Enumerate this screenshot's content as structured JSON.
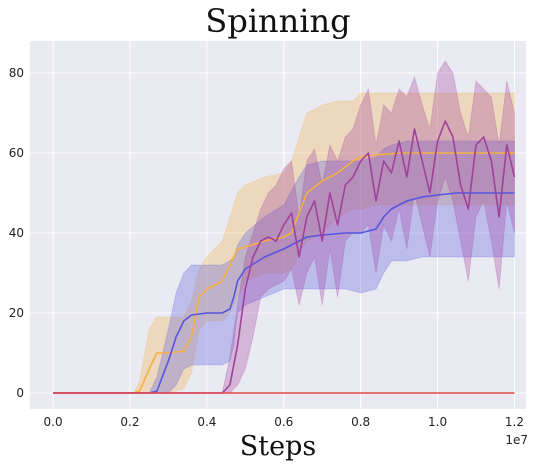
{
  "chart_data": {
    "type": "area",
    "title": "Spinning",
    "xlabel": "Steps",
    "ylabel": "",
    "x_scale_label": "1e7",
    "xlim": [
      -0.06,
      1.23
    ],
    "ylim": [
      -4,
      88
    ],
    "x_ticks": [
      0.0,
      0.2,
      0.4,
      0.6,
      0.8,
      1.0,
      1.2
    ],
    "x_tick_labels": [
      "0.0",
      "0.2",
      "0.4",
      "0.6",
      "0.8",
      "1.0",
      "1.2"
    ],
    "y_ticks": [
      0,
      20,
      40,
      60,
      80
    ],
    "y_tick_labels": [
      "0",
      "20",
      "40",
      "60",
      "80"
    ],
    "grid": true,
    "colors": {
      "background": "#eaeaf2",
      "grid": "#ffffff"
    },
    "series": [
      {
        "color": "#f5b042",
        "points": [
          [
            0.0,
            0,
            0,
            0
          ],
          [
            0.21,
            0,
            0,
            0
          ],
          [
            0.225,
            0.5,
            0,
            3
          ],
          [
            0.25,
            6,
            0,
            16
          ],
          [
            0.27,
            10,
            0,
            19
          ],
          [
            0.3,
            10,
            0,
            19
          ],
          [
            0.34,
            10.5,
            1,
            19
          ],
          [
            0.36,
            14,
            5,
            23
          ],
          [
            0.38,
            24,
            16,
            31
          ],
          [
            0.4,
            26,
            18,
            34
          ],
          [
            0.44,
            28,
            18,
            38
          ],
          [
            0.46,
            32,
            20,
            44
          ],
          [
            0.48,
            36,
            24,
            50
          ],
          [
            0.5,
            36.5,
            28,
            52
          ],
          [
            0.55,
            38,
            30,
            54
          ],
          [
            0.6,
            39,
            30,
            55
          ],
          [
            0.62,
            40,
            31,
            58
          ],
          [
            0.64,
            45,
            35,
            64
          ],
          [
            0.66,
            50,
            38,
            70
          ],
          [
            0.7,
            53,
            40,
            72
          ],
          [
            0.74,
            55,
            44,
            73
          ],
          [
            0.78,
            58,
            46,
            73
          ],
          [
            0.8,
            59,
            46,
            75
          ],
          [
            0.84,
            59.5,
            47,
            75
          ],
          [
            0.9,
            60,
            47,
            75
          ],
          [
            0.95,
            60,
            47,
            75
          ],
          [
            1.0,
            60,
            47,
            75
          ],
          [
            1.05,
            60,
            47,
            75
          ],
          [
            1.1,
            60,
            47,
            75
          ],
          [
            1.15,
            60,
            47,
            75
          ],
          [
            1.2,
            60,
            47,
            75
          ]
        ]
      },
      {
        "color": "#5555dd",
        "points": [
          [
            0.0,
            0,
            0,
            0
          ],
          [
            0.25,
            0,
            0,
            0
          ],
          [
            0.27,
            0.5,
            0,
            4
          ],
          [
            0.3,
            8,
            0,
            16
          ],
          [
            0.32,
            14,
            2,
            25
          ],
          [
            0.34,
            18,
            6,
            30
          ],
          [
            0.36,
            19.5,
            7,
            32
          ],
          [
            0.4,
            20,
            7,
            32
          ],
          [
            0.44,
            20,
            7,
            32
          ],
          [
            0.46,
            21,
            8,
            33
          ],
          [
            0.47,
            24,
            12,
            34
          ],
          [
            0.48,
            28,
            20,
            37
          ],
          [
            0.5,
            31,
            22,
            40
          ],
          [
            0.55,
            34,
            24,
            44
          ],
          [
            0.6,
            36,
            26,
            47
          ],
          [
            0.64,
            38,
            26,
            54
          ],
          [
            0.66,
            39,
            26,
            57
          ],
          [
            0.7,
            39.5,
            26,
            58
          ],
          [
            0.76,
            40,
            26,
            58
          ],
          [
            0.8,
            40,
            25,
            58
          ],
          [
            0.84,
            41,
            26,
            59
          ],
          [
            0.86,
            44,
            30,
            61
          ],
          [
            0.88,
            46,
            33,
            62
          ],
          [
            0.92,
            48,
            33,
            63
          ],
          [
            0.96,
            49,
            34,
            63
          ],
          [
            1.0,
            49.5,
            34,
            63
          ],
          [
            1.05,
            50,
            34,
            63
          ],
          [
            1.1,
            50,
            34,
            63
          ],
          [
            1.15,
            50,
            34,
            63
          ],
          [
            1.2,
            50,
            34,
            63
          ]
        ]
      },
      {
        "color": "#a0409a",
        "points": [
          [
            0.0,
            0,
            0,
            0
          ],
          [
            0.44,
            0,
            0,
            0
          ],
          [
            0.46,
            2,
            0,
            9
          ],
          [
            0.48,
            12,
            2,
            22
          ],
          [
            0.5,
            26,
            6,
            34
          ],
          [
            0.52,
            34,
            14,
            40
          ],
          [
            0.54,
            38,
            24,
            46
          ],
          [
            0.56,
            39,
            26,
            50
          ],
          [
            0.58,
            38,
            27,
            52
          ],
          [
            0.6,
            42,
            28,
            56
          ],
          [
            0.62,
            45,
            31,
            58
          ],
          [
            0.64,
            34,
            22,
            44
          ],
          [
            0.66,
            44,
            30,
            58
          ],
          [
            0.68,
            48,
            34,
            61
          ],
          [
            0.7,
            38,
            22,
            52
          ],
          [
            0.72,
            50,
            36,
            62
          ],
          [
            0.74,
            42,
            24,
            58
          ],
          [
            0.76,
            52,
            38,
            64
          ],
          [
            0.78,
            54,
            40,
            66
          ],
          [
            0.8,
            58,
            40,
            72
          ],
          [
            0.82,
            60,
            42,
            76
          ],
          [
            0.84,
            48,
            30,
            62
          ],
          [
            0.86,
            58,
            42,
            72
          ],
          [
            0.88,
            55,
            38,
            70
          ],
          [
            0.9,
            63,
            46,
            76
          ],
          [
            0.92,
            54,
            36,
            74
          ],
          [
            0.94,
            66,
            50,
            79
          ],
          [
            0.96,
            58,
            42,
            72
          ],
          [
            0.98,
            50,
            34,
            66
          ],
          [
            1.0,
            63,
            48,
            80
          ],
          [
            1.02,
            68,
            54,
            83
          ],
          [
            1.04,
            64,
            48,
            80
          ],
          [
            1.06,
            52,
            38,
            70
          ],
          [
            1.08,
            46,
            28,
            64
          ],
          [
            1.1,
            62,
            44,
            78
          ],
          [
            1.12,
            64,
            48,
            76
          ],
          [
            1.14,
            58,
            38,
            74
          ],
          [
            1.16,
            44,
            26,
            62
          ],
          [
            1.18,
            62,
            48,
            78
          ],
          [
            1.2,
            54,
            40,
            70
          ]
        ]
      },
      {
        "color": "#e24a4a",
        "points": [
          [
            0.0,
            0,
            0,
            0
          ],
          [
            1.2,
            0,
            0,
            0
          ]
        ]
      }
    ]
  }
}
